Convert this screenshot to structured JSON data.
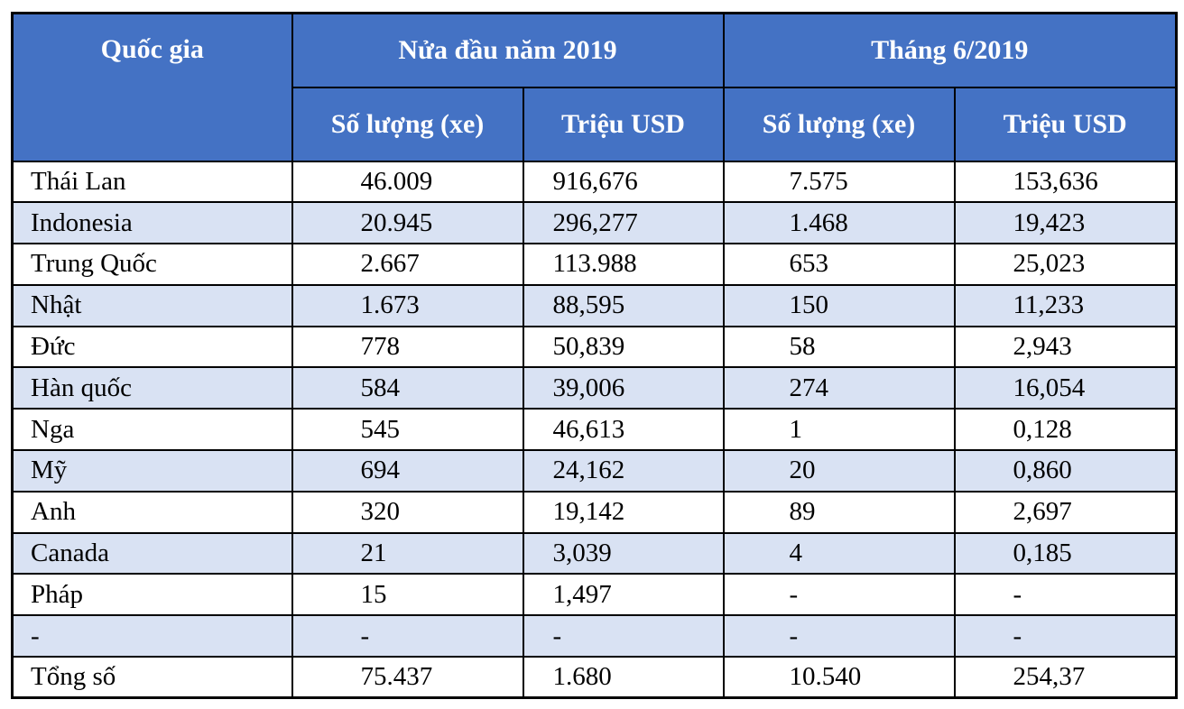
{
  "colors": {
    "header_bg": "#4472C4",
    "band_bg": "#D9E2F3",
    "border_color": "#000000",
    "header_text": "#FFFFFF",
    "body_text": "#000000",
    "page_bg": "#FFFFFF"
  },
  "chart_data": {
    "type": "table",
    "title": "",
    "column_groups": [
      {
        "label": "Quốc gia",
        "span": 1
      },
      {
        "label": "Nửa đầu năm 2019",
        "span": 2
      },
      {
        "label": "Tháng 6/2019",
        "span": 2
      }
    ],
    "columns": [
      "Quốc gia",
      "Số lượng (xe)",
      "Triệu USD",
      "Số lượng (xe)",
      "Triệu USD"
    ],
    "rows": [
      [
        "Thái Lan",
        "46.009",
        "916,676",
        "7.575",
        "153,636"
      ],
      [
        "Indonesia",
        "20.945",
        "296,277",
        "1.468",
        "19,423"
      ],
      [
        "Trung Quốc",
        "2.667",
        "113.988",
        "653",
        "25,023"
      ],
      [
        "Nhật",
        "1.673",
        "88,595",
        "150",
        "11,233"
      ],
      [
        "Đức",
        "778",
        "50,839",
        "58",
        "2,943"
      ],
      [
        "Hàn quốc",
        "584",
        "39,006",
        "274",
        "16,054"
      ],
      [
        "Nga",
        "545",
        "46,613",
        "1",
        "0,128"
      ],
      [
        "Mỹ",
        "694",
        "24,162",
        "20",
        "0,860"
      ],
      [
        "Anh",
        "320",
        "19,142",
        "89",
        "2,697"
      ],
      [
        "Canada",
        "21",
        "3,039",
        "4",
        "0,185"
      ],
      [
        "Pháp",
        "15",
        "1,497",
        "-",
        "-"
      ],
      [
        "-",
        "-",
        "-",
        "-",
        "-"
      ],
      [
        "Tổng số",
        "75.437",
        "1.680",
        "10.540",
        "254,37"
      ]
    ]
  }
}
